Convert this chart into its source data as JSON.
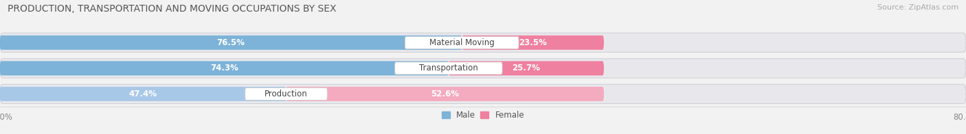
{
  "title": "PRODUCTION, TRANSPORTATION AND MOVING OCCUPATIONS BY SEX",
  "source": "Source: ZipAtlas.com",
  "categories": [
    "Material Moving",
    "Transportation",
    "Production"
  ],
  "male_values": [
    76.5,
    74.3,
    47.4
  ],
  "female_values": [
    23.5,
    25.7,
    52.6
  ],
  "male_color_top": "#7db3d8",
  "male_color_bot": "#a8c8e8",
  "female_color_top": "#f080a0",
  "female_color_bot": "#f4aabf",
  "row_bg_color": "#e8e8ec",
  "fig_bg_color": "#f2f2f2",
  "label_fontsize": 8.5,
  "title_fontsize": 10.0,
  "source_fontsize": 8.0,
  "axis_range": 80.0
}
